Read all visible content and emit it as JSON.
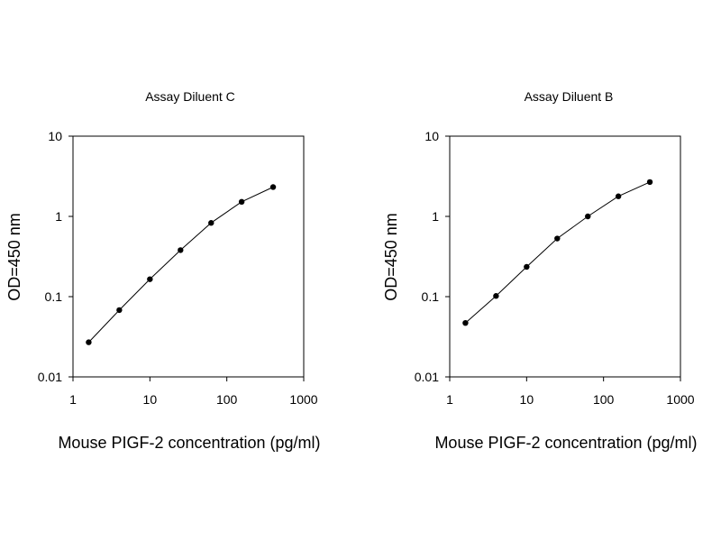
{
  "chart_data": [
    {
      "type": "scatter",
      "title": "Assay Diluent C",
      "xlabel": "Mouse PIGF-2 concentration (pg/ml)",
      "ylabel": "OD=450 nm",
      "x_scale": "log",
      "y_scale": "log",
      "xlim": [
        1,
        1000
      ],
      "ylim": [
        0.01,
        10
      ],
      "x_ticks": [
        "1",
        "10",
        "100",
        "1000"
      ],
      "y_ticks": [
        "0.01",
        "0.1",
        "1",
        "10"
      ],
      "grid": false,
      "legend": false,
      "series": [
        {
          "x": [
            1.6,
            4,
            10,
            25,
            62.5,
            156,
            400
          ],
          "y": [
            0.027,
            0.068,
            0.165,
            0.38,
            0.83,
            1.52,
            2.32
          ]
        }
      ]
    },
    {
      "type": "scatter",
      "title": "Assay Diluent B",
      "xlabel": "Mouse PIGF-2 concentration (pg/ml)",
      "ylabel": "OD=450 nm",
      "x_scale": "log",
      "y_scale": "log",
      "xlim": [
        1,
        1000
      ],
      "ylim": [
        0.01,
        10
      ],
      "x_ticks": [
        "1",
        "10",
        "100",
        "1000"
      ],
      "y_ticks": [
        "0.01",
        "0.1",
        "1",
        "10"
      ],
      "grid": false,
      "legend": false,
      "series": [
        {
          "x": [
            1.6,
            4,
            10,
            25,
            62.5,
            156,
            400
          ],
          "y": [
            0.047,
            0.102,
            0.235,
            0.53,
            1.0,
            1.78,
            2.68
          ]
        }
      ]
    }
  ]
}
